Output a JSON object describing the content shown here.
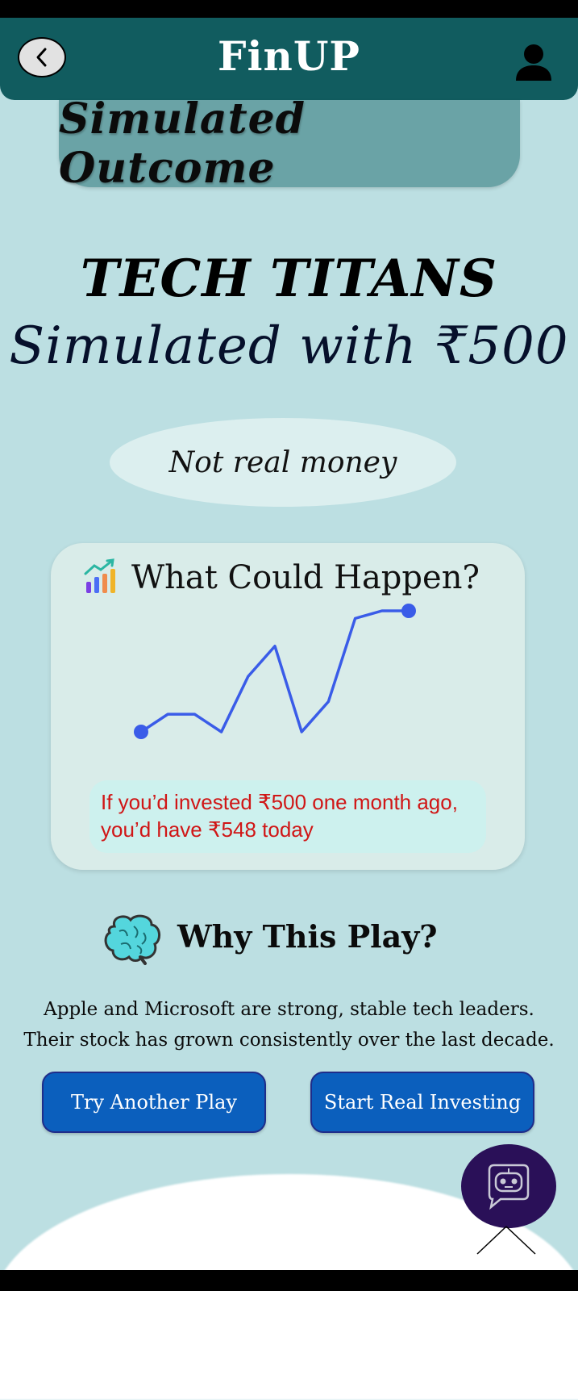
{
  "header": {
    "title": "FinUP",
    "back_icon": "chevron-left-icon",
    "profile_icon": "user-icon"
  },
  "section": {
    "title": "Simulated Outcome"
  },
  "play": {
    "name": "TECH TITANS",
    "simulated_with": "Simulated with ₹500"
  },
  "disclaimer": "Not real money",
  "outcome_card": {
    "icon": "bar-chart-icon",
    "title": "What Could Happen?",
    "result_note": "If you’d invested ₹500 one month ago, you’d have ₹548 today"
  },
  "chart_data": {
    "type": "line",
    "x": [
      0,
      1,
      2,
      3,
      4,
      5,
      6,
      7,
      8,
      9,
      10
    ],
    "series": [
      {
        "values": [
          500,
          507,
          507,
          500,
          522,
          534,
          500,
          512,
          545,
          548,
          548
        ]
      }
    ],
    "color": "#3a5ce8",
    "grid": false,
    "axes_visible": false
  },
  "why": {
    "icon": "brain-icon",
    "title": "Why This Play?",
    "text_line1": "Apple and Microsoft are strong, stable tech leaders.",
    "text_line2": "Their stock has grown consistently over the last decade."
  },
  "buttons": {
    "try_another": "Try Another Play",
    "start_real": "Start Real Investing"
  },
  "assistant": {
    "icon": "robot-chat-icon"
  },
  "colors": {
    "background": "#bcdfe2",
    "header": "#115c5f",
    "accent_button": "#0b5fbd",
    "line": "#3a5ce8",
    "note_text": "#d01616"
  }
}
